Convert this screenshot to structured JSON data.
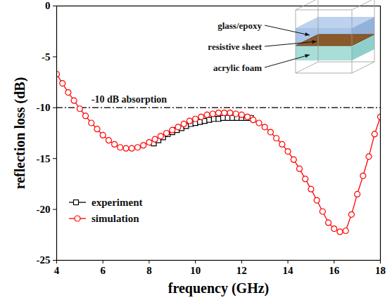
{
  "chart_data": {
    "type": "line",
    "xlabel": "frequency (GHz)",
    "ylabel": "reflection loss (dB)",
    "xlim": [
      4,
      18
    ],
    "ylim": [
      -25,
      0
    ],
    "xticks": [
      4,
      6,
      8,
      10,
      12,
      14,
      16,
      18
    ],
    "yticks": [
      0,
      -5,
      -10,
      -15,
      -20,
      -25
    ],
    "grid": false,
    "legend": "bottom-left",
    "series": [
      {
        "name": "experiment",
        "color": "#000000",
        "marker": "square",
        "x": [
          8.2,
          8.4,
          8.6,
          8.8,
          9.0,
          9.2,
          9.4,
          9.6,
          9.8,
          10.0,
          10.2,
          10.4,
          10.6,
          10.8,
          11.0,
          11.2,
          11.4,
          11.6,
          11.8,
          12.0,
          12.2,
          12.4
        ],
        "values": [
          -13.5,
          -13.2,
          -12.9,
          -12.6,
          -12.4,
          -12.2,
          -12.0,
          -11.8,
          -11.6,
          -11.5,
          -11.4,
          -11.3,
          -11.2,
          -11.1,
          -11.1,
          -11.0,
          -11.0,
          -11.0,
          -11.0,
          -11.0,
          -11.0,
          -11.0
        ]
      },
      {
        "name": "simulation",
        "color": "#ff0000",
        "marker": "circle",
        "x": [
          4,
          4.25,
          4.5,
          4.75,
          5,
          5.25,
          5.5,
          5.75,
          6,
          6.25,
          6.5,
          6.75,
          7,
          7.25,
          7.5,
          7.75,
          8,
          8.25,
          8.5,
          8.75,
          9,
          9.25,
          9.5,
          9.75,
          10,
          10.25,
          10.5,
          10.75,
          11,
          11.25,
          11.5,
          11.75,
          12,
          12.25,
          12.5,
          12.75,
          13,
          13.25,
          13.5,
          13.75,
          14,
          14.25,
          14.5,
          14.75,
          15,
          15.25,
          15.5,
          15.75,
          16,
          16.25,
          16.5,
          16.75,
          17,
          17.25,
          17.5,
          17.75,
          18
        ],
        "values": [
          -6.7,
          -7.6,
          -8.5,
          -9.3,
          -10.1,
          -10.8,
          -11.5,
          -12.1,
          -12.7,
          -13.2,
          -13.6,
          -13.9,
          -14.0,
          -14.0,
          -13.9,
          -13.7,
          -13.4,
          -13.1,
          -12.8,
          -12.5,
          -12.2,
          -11.9,
          -11.6,
          -11.3,
          -11.1,
          -10.9,
          -10.7,
          -10.6,
          -10.5,
          -10.5,
          -10.5,
          -10.6,
          -10.7,
          -10.9,
          -11.2,
          -11.5,
          -11.9,
          -12.4,
          -13.0,
          -13.6,
          -14.3,
          -15.1,
          -16.0,
          -17.0,
          -18.0,
          -19.1,
          -20.2,
          -21.3,
          -21.9,
          -22.2,
          -22.1,
          -20.5,
          -18.5,
          -16.7,
          -14.8,
          -12.6,
          -10.9
        ]
      }
    ],
    "reference_lines": [
      {
        "y": -10,
        "line_style": "dashdot"
      }
    ],
    "annotations": [
      {
        "text": "-10 dB absorption",
        "x": 5.5,
        "y": -9.2
      }
    ],
    "inset": {
      "labels": [
        "glass/epoxy",
        "resistive sheet",
        "acrylic foam"
      ]
    }
  }
}
